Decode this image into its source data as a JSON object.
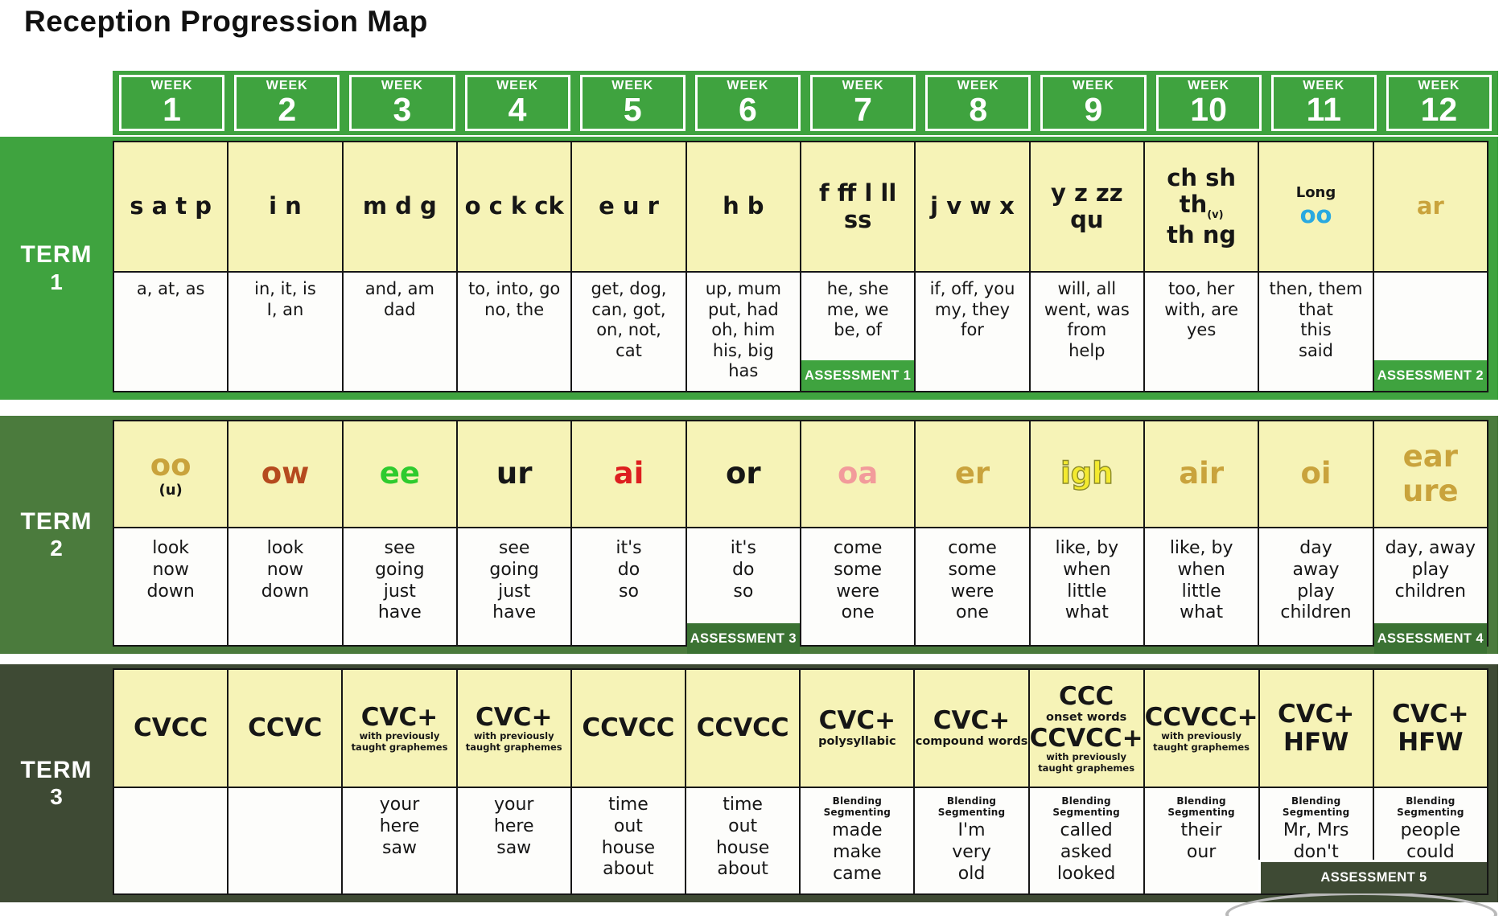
{
  "page": {
    "title": "Reception Progression Map"
  },
  "colors": {
    "week_band_green": "#3fa33f",
    "yellow_cell": "#f6f3b7",
    "gold": "#c9a33c",
    "blue": "#2aa9e0",
    "red": "#dd1f1f",
    "green": "#2ecb2e",
    "orange": "#b54a1e",
    "pink": "#f29b9b",
    "igh_fill": "#f4ea2f"
  },
  "week_header": {
    "label": "WEEK",
    "numbers": [
      "1",
      "2",
      "3",
      "4",
      "5",
      "6",
      "7",
      "8",
      "9",
      "10",
      "11",
      "12"
    ]
  },
  "terms": [
    {
      "label": "TERM",
      "number": "1",
      "band_color": "#3fa33f",
      "assessment_color": "#3fa33f",
      "weeks": [
        {
          "phoneme": [
            {
              "t": "s a t p"
            }
          ],
          "words": [
            "a, at, as"
          ]
        },
        {
          "phoneme": [
            {
              "t": "i n"
            }
          ],
          "words": [
            "in, it, is",
            "I, an"
          ]
        },
        {
          "phoneme": [
            {
              "t": "m d g"
            }
          ],
          "words": [
            "and, am",
            "dad"
          ]
        },
        {
          "phoneme": [
            {
              "t": "o c k ck"
            }
          ],
          "words": [
            "to, into, go",
            "no, the"
          ]
        },
        {
          "phoneme": [
            {
              "t": "e u r"
            }
          ],
          "words": [
            "get, dog,",
            "can, got,",
            "on, not,",
            "cat"
          ]
        },
        {
          "phoneme": [
            {
              "t": "h b"
            }
          ],
          "words": [
            "up, mum",
            "put, had",
            "oh, him",
            "his, big",
            "has"
          ]
        },
        {
          "phoneme": [
            {
              "t": "f ff l ll"
            },
            {
              "t": "ss"
            }
          ],
          "words": [
            "he, she",
            "me, we",
            "be, of"
          ],
          "assessment": "ASSESSMENT 1"
        },
        {
          "phoneme": [
            {
              "t": "j v w x"
            }
          ],
          "words": [
            "if, off, you",
            "my, they",
            "for"
          ]
        },
        {
          "phoneme": [
            {
              "t": "y z zz"
            },
            {
              "t": "qu"
            }
          ],
          "words": [
            "will, all",
            "went, was",
            "from",
            "help"
          ]
        },
        {
          "phoneme": [
            {
              "t": "ch sh th",
              "sup": "(v)"
            },
            {
              "t": "th ng"
            }
          ],
          "words": [
            "too, her",
            "with, are",
            "yes"
          ]
        },
        {
          "phoneme": [
            {
              "t": "Long",
              "size": "sm"
            },
            {
              "t": "oo",
              "color": "blue"
            }
          ],
          "words": [
            "then, them",
            "that",
            "this",
            "said"
          ]
        },
        {
          "phoneme": [
            {
              "t": "ar",
              "color": "gold"
            }
          ],
          "words": [],
          "assessment": "ASSESSMENT 2"
        }
      ]
    },
    {
      "label": "TERM",
      "number": "2",
      "band_color": "#4b7b3d",
      "assessment_color": "#3b7233",
      "weeks": [
        {
          "phoneme": [
            {
              "t": "oo",
              "color": "gold"
            },
            {
              "t": "(u)",
              "size": "sm"
            }
          ],
          "words": [
            "look",
            "now",
            "down"
          ]
        },
        {
          "phoneme": [
            {
              "t": "ow",
              "color": "orange"
            }
          ],
          "words": [
            "look",
            "now",
            "down"
          ]
        },
        {
          "phoneme": [
            {
              "t": "ee",
              "color": "green"
            }
          ],
          "words": [
            "see",
            "going",
            "just",
            "have"
          ]
        },
        {
          "phoneme": [
            {
              "t": "ur"
            }
          ],
          "words": [
            "see",
            "going",
            "just",
            "have"
          ]
        },
        {
          "phoneme": [
            {
              "t": "ai",
              "color": "red"
            }
          ],
          "words": [
            "it's",
            "do",
            "so"
          ]
        },
        {
          "phoneme": [
            {
              "t": "or"
            }
          ],
          "words": [
            "it's",
            "do",
            "so"
          ],
          "assessment": "ASSESSMENT 3"
        },
        {
          "phoneme": [
            {
              "t": "oa",
              "color": "pink"
            }
          ],
          "words": [
            "come",
            "some",
            "were",
            "one"
          ]
        },
        {
          "phoneme": [
            {
              "t": "er",
              "color": "gold"
            }
          ],
          "words": [
            "come",
            "some",
            "were",
            "one"
          ]
        },
        {
          "phoneme": [
            {
              "t": "igh",
              "color": "igh_fill",
              "stroke": true
            }
          ],
          "words": [
            "like, by",
            "when",
            "little",
            "what"
          ]
        },
        {
          "phoneme": [
            {
              "t": "air",
              "color": "gold"
            }
          ],
          "words": [
            "like, by",
            "when",
            "little",
            "what"
          ]
        },
        {
          "phoneme": [
            {
              "t": "oi",
              "color": "gold"
            }
          ],
          "words": [
            "day",
            "away",
            "play",
            "children"
          ]
        },
        {
          "phoneme": [
            {
              "t": "ear",
              "color": "gold"
            },
            {
              "t": "ure",
              "color": "gold"
            }
          ],
          "words": [
            "day, away",
            "play",
            "children"
          ],
          "assessment": "ASSESSMENT 4"
        }
      ]
    },
    {
      "label": "TERM",
      "number": "3",
      "band_color": "#3e4a34",
      "assessment_color": "#3e4a34",
      "weeks": [
        {
          "phoneme": [
            {
              "t": "CVCC"
            }
          ],
          "words": []
        },
        {
          "phoneme": [
            {
              "t": "CCVC"
            }
          ],
          "words": []
        },
        {
          "phoneme": [
            {
              "t": "CVC+"
            },
            {
              "t": "with previously",
              "size": "xs"
            },
            {
              "t": "taught graphemes",
              "size": "xs"
            }
          ],
          "words": [
            "your",
            "here",
            "saw"
          ]
        },
        {
          "phoneme": [
            {
              "t": "CVC+"
            },
            {
              "t": "with previously",
              "size": "xs"
            },
            {
              "t": "taught graphemes",
              "size": "xs"
            }
          ],
          "words": [
            "your",
            "here",
            "saw"
          ]
        },
        {
          "phoneme": [
            {
              "t": "CCVCC"
            }
          ],
          "words": [
            "time",
            "out",
            "house",
            "about"
          ]
        },
        {
          "phoneme": [
            {
              "t": "CCVCC"
            }
          ],
          "words": [
            "time",
            "out",
            "house",
            "about"
          ]
        },
        {
          "phoneme": [
            {
              "t": "CVC+"
            },
            {
              "t": "polysyllabic",
              "size": "xs2"
            }
          ],
          "note": "Blending Segmenting",
          "words": [
            "made",
            "make",
            "came"
          ]
        },
        {
          "phoneme": [
            {
              "t": "CVC+"
            },
            {
              "t": "compound words",
              "size": "xs2"
            }
          ],
          "note": "Blending Segmenting",
          "words": [
            "I'm",
            "very",
            "old"
          ]
        },
        {
          "phoneme": [
            {
              "t": "CCC"
            },
            {
              "t": "onset words",
              "size": "xs2"
            },
            {
              "t": "CCVCC+"
            },
            {
              "t": "with previously",
              "size": "xs"
            },
            {
              "t": "taught graphemes",
              "size": "xs"
            }
          ],
          "note": "Blending Segmenting",
          "words": [
            "called",
            "asked",
            "looked"
          ]
        },
        {
          "phoneme": [
            {
              "t": "CCVCC+"
            },
            {
              "t": "with previously",
              "size": "xs"
            },
            {
              "t": "taught graphemes",
              "size": "xs"
            }
          ],
          "note": "Blending Segmenting",
          "words": [
            "their",
            "our"
          ]
        },
        {
          "phoneme": [
            {
              "t": "CVC+"
            },
            {
              "t": "HFW"
            }
          ],
          "note": "Blending Segmenting",
          "words": [
            "Mr, Mrs",
            "don't"
          ]
        },
        {
          "phoneme": [
            {
              "t": "CVC+"
            },
            {
              "t": "HFW"
            }
          ],
          "note": "Blending Segmenting",
          "words": [
            "people",
            "could"
          ],
          "assessment": "ASSESSMENT 5",
          "assessment_span2": true
        }
      ]
    }
  ]
}
